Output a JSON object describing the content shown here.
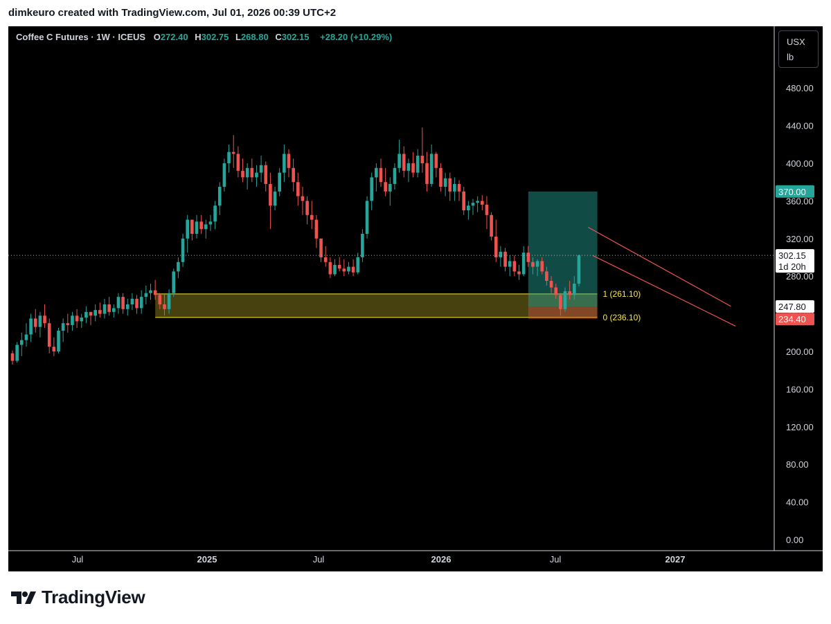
{
  "header": {
    "credit": "dimkeuro created with TradingView.com, Jul 01, 2026 00:39 UTC+2"
  },
  "hud": {
    "symbol": "Coffee C Futures · 1W · ICEUS",
    "open_label": "O",
    "open": "272.40",
    "high_label": "H",
    "high": "302.75",
    "low_label": "L",
    "low": "268.80",
    "close_label": "C",
    "close": "302.15",
    "change": "+28.20 (+10.29%)"
  },
  "unit_box": {
    "currency": "USX",
    "unit": "lb"
  },
  "footer": {
    "brand": "TradingView"
  },
  "colors": {
    "up": "#26a69a",
    "down": "#ef5350",
    "zone": "#ffeb3b",
    "target": "#26a69a",
    "stop": "#ef5350"
  },
  "chart_data": {
    "type": "candlestick",
    "timeframe": "1W",
    "ylim": [
      0,
      500
    ],
    "y_ticks": [
      "0.00",
      "40.00",
      "80.00",
      "120.00",
      "160.00",
      "200.00",
      "240.00",
      "280.00",
      "320.00",
      "360.00",
      "400.00",
      "440.00",
      "480.00"
    ],
    "x_ticks": [
      "Jul",
      "2025",
      "Jul",
      "2026",
      "Jul",
      "2027"
    ],
    "x_ticks_bold": [
      false,
      true,
      false,
      true,
      false,
      true
    ],
    "series": [
      {
        "ohlc": [
          [
            198,
            201,
            186,
            190
          ],
          [
            190,
            210,
            188,
            207
          ],
          [
            207,
            220,
            195,
            212
          ],
          [
            212,
            230,
            205,
            218
          ],
          [
            218,
            240,
            210,
            235
          ],
          [
            235,
            245,
            220,
            226
          ],
          [
            226,
            242,
            215,
            238
          ],
          [
            238,
            250,
            225,
            230
          ],
          [
            230,
            235,
            198,
            205
          ],
          [
            205,
            215,
            195,
            200
          ],
          [
            200,
            225,
            198,
            222
          ],
          [
            222,
            235,
            210,
            230
          ],
          [
            230,
            240,
            220,
            228
          ],
          [
            228,
            242,
            222,
            238
          ],
          [
            238,
            245,
            225,
            232
          ],
          [
            232,
            240,
            225,
            236
          ],
          [
            236,
            248,
            230,
            242
          ],
          [
            242,
            238,
            228,
            238
          ],
          [
            238,
            250,
            232,
            244
          ],
          [
            244,
            252,
            236,
            240
          ],
          [
            240,
            256,
            235,
            250
          ],
          [
            250,
            258,
            238,
            242
          ],
          [
            242,
            250,
            236,
            246
          ],
          [
            246,
            262,
            240,
            258
          ],
          [
            258,
            262,
            240,
            245
          ],
          [
            245,
            256,
            238,
            250
          ],
          [
            250,
            262,
            244,
            256
          ],
          [
            256,
            260,
            240,
            246
          ],
          [
            246,
            265,
            240,
            258
          ],
          [
            258,
            270,
            250,
            262
          ],
          [
            262,
            272,
            255,
            265
          ],
          [
            265,
            276,
            255,
            260
          ],
          [
            260,
            262,
            245,
            250
          ],
          [
            250,
            262,
            238,
            245
          ],
          [
            245,
            266,
            240,
            262
          ],
          [
            262,
            288,
            258,
            285
          ],
          [
            285,
            300,
            278,
            295
          ],
          [
            295,
            325,
            290,
            320
          ],
          [
            320,
            345,
            305,
            340
          ],
          [
            340,
            338,
            318,
            325
          ],
          [
            325,
            345,
            320,
            338
          ],
          [
            338,
            345,
            325,
            330
          ],
          [
            330,
            340,
            320,
            335
          ],
          [
            335,
            345,
            328,
            338
          ],
          [
            338,
            360,
            330,
            355
          ],
          [
            355,
            380,
            345,
            375
          ],
          [
            375,
            405,
            370,
            400
          ],
          [
            400,
            420,
            390,
            412
          ],
          [
            412,
            430,
            395,
            410
          ],
          [
            410,
            418,
            385,
            392
          ],
          [
            392,
            405,
            380,
            385
          ],
          [
            385,
            400,
            372,
            395
          ],
          [
            395,
            405,
            380,
            385
          ],
          [
            385,
            398,
            375,
            390
          ],
          [
            390,
            408,
            380,
            398
          ],
          [
            398,
            402,
            370,
            378
          ],
          [
            378,
            390,
            330,
            355
          ],
          [
            355,
            375,
            350,
            370
          ],
          [
            370,
            395,
            365,
            390
          ],
          [
            390,
            420,
            380,
            410
          ],
          [
            410,
            415,
            385,
            395
          ],
          [
            395,
            405,
            370,
            380
          ],
          [
            380,
            390,
            355,
            365
          ],
          [
            365,
            375,
            345,
            360
          ],
          [
            360,
            365,
            335,
            345
          ],
          [
            345,
            360,
            330,
            340
          ],
          [
            340,
            345,
            310,
            320
          ],
          [
            320,
            320,
            295,
            300
          ],
          [
            300,
            312,
            290,
            295
          ],
          [
            295,
            300,
            278,
            282
          ],
          [
            282,
            298,
            280,
            292
          ],
          [
            292,
            300,
            285,
            288
          ],
          [
            288,
            298,
            280,
            285
          ],
          [
            285,
            295,
            282,
            290
          ],
          [
            290,
            298,
            280,
            284
          ],
          [
            284,
            305,
            282,
            300
          ],
          [
            300,
            330,
            295,
            325
          ],
          [
            325,
            365,
            320,
            360
          ],
          [
            360,
            390,
            350,
            385
          ],
          [
            385,
            400,
            370,
            395
          ],
          [
            395,
            405,
            375,
            380
          ],
          [
            380,
            395,
            365,
            370
          ],
          [
            370,
            385,
            355,
            378
          ],
          [
            378,
            400,
            372,
            395
          ],
          [
            395,
            425,
            390,
            410
          ],
          [
            410,
            418,
            385,
            392
          ],
          [
            392,
            405,
            380,
            400
          ],
          [
            400,
            412,
            385,
            390
          ],
          [
            390,
            415,
            385,
            408
          ],
          [
            408,
            438,
            390,
            400
          ],
          [
            400,
            412,
            370,
            378
          ],
          [
            378,
            420,
            375,
            410
          ],
          [
            410,
            412,
            385,
            395
          ],
          [
            395,
            400,
            370,
            375
          ],
          [
            375,
            390,
            365,
            384
          ],
          [
            384,
            390,
            360,
            370
          ],
          [
            370,
            385,
            360,
            378
          ],
          [
            378,
            382,
            360,
            370
          ],
          [
            370,
            375,
            345,
            350
          ],
          [
            350,
            360,
            340,
            355
          ],
          [
            355,
            362,
            345,
            358
          ],
          [
            358,
            365,
            348,
            360
          ],
          [
            360,
            366,
            350,
            356
          ],
          [
            356,
            365,
            330,
            345
          ],
          [
            345,
            348,
            318,
            322
          ],
          [
            322,
            340,
            295,
            300
          ],
          [
            300,
            312,
            290,
            306
          ],
          [
            306,
            310,
            285,
            290
          ],
          [
            290,
            302,
            280,
            296
          ],
          [
            296,
            302,
            280,
            285
          ],
          [
            285,
            292,
            276,
            282
          ],
          [
            282,
            312,
            280,
            305
          ],
          [
            305,
            312,
            290,
            295
          ],
          [
            295,
            300,
            282,
            290
          ],
          [
            290,
            298,
            280,
            296
          ],
          [
            296,
            300,
            282,
            285
          ],
          [
            285,
            290,
            270,
            275
          ],
          [
            275,
            280,
            262,
            268
          ],
          [
            268,
            272,
            256,
            260
          ],
          [
            260,
            262,
            238,
            245
          ],
          [
            245,
            268,
            242,
            264
          ],
          [
            264,
            275,
            255,
            260
          ],
          [
            260,
            280,
            255,
            272
          ],
          [
            272,
            303,
            269,
            302
          ]
        ]
      }
    ],
    "annotations": {
      "zone_top": 261.1,
      "zone_bottom": 236.1,
      "zone_top_label": "1 (261.10)",
      "zone_bottom_label": "0 (236.10)",
      "target": 370.0,
      "target_label": "370.00",
      "entry": 247.8,
      "entry_label": "247.80",
      "stop": 234.4,
      "stop_label": "234.40",
      "last_price": 302.15,
      "last_price_label": "302.15",
      "countdown": "1d 20h",
      "channel_upper": [
        [
          125,
          332
        ],
        [
          156,
          248
        ]
      ],
      "channel_lower": [
        [
          126,
          302
        ],
        [
          157,
          227
        ]
      ]
    }
  }
}
